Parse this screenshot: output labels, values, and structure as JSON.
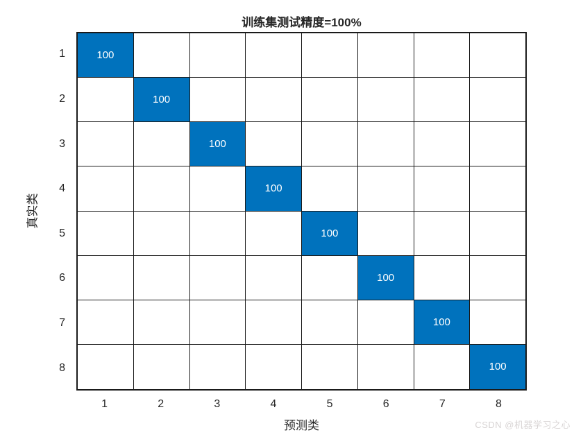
{
  "figure": {
    "watermark": "CSDN @机器学习之心"
  },
  "chart_data": {
    "type": "heatmap",
    "subtype": "confusion-matrix",
    "title": "训练集测试精度=100%",
    "xlabel": "预测类",
    "ylabel": "真实类",
    "x_categories": [
      "1",
      "2",
      "3",
      "4",
      "5",
      "6",
      "7",
      "8"
    ],
    "y_categories": [
      "1",
      "2",
      "3",
      "4",
      "5",
      "6",
      "7",
      "8"
    ],
    "matrix": [
      [
        100,
        null,
        null,
        null,
        null,
        null,
        null,
        null
      ],
      [
        null,
        100,
        null,
        null,
        null,
        null,
        null,
        null
      ],
      [
        null,
        null,
        100,
        null,
        null,
        null,
        null,
        null
      ],
      [
        null,
        null,
        null,
        100,
        null,
        null,
        null,
        null
      ],
      [
        null,
        null,
        null,
        null,
        100,
        null,
        null,
        null
      ],
      [
        null,
        null,
        null,
        null,
        null,
        100,
        null,
        null
      ],
      [
        null,
        null,
        null,
        null,
        null,
        null,
        100,
        null
      ],
      [
        null,
        null,
        null,
        null,
        null,
        null,
        null,
        100
      ]
    ],
    "value_range": [
      0,
      100
    ],
    "grid": true,
    "legend": "none",
    "colors": {
      "cell_fill": "#0072BD",
      "cell_text": "#ffffff",
      "axis_text": "#262626",
      "grid_line": "#1a1a1a",
      "watermark": "#d8d4d4"
    }
  }
}
